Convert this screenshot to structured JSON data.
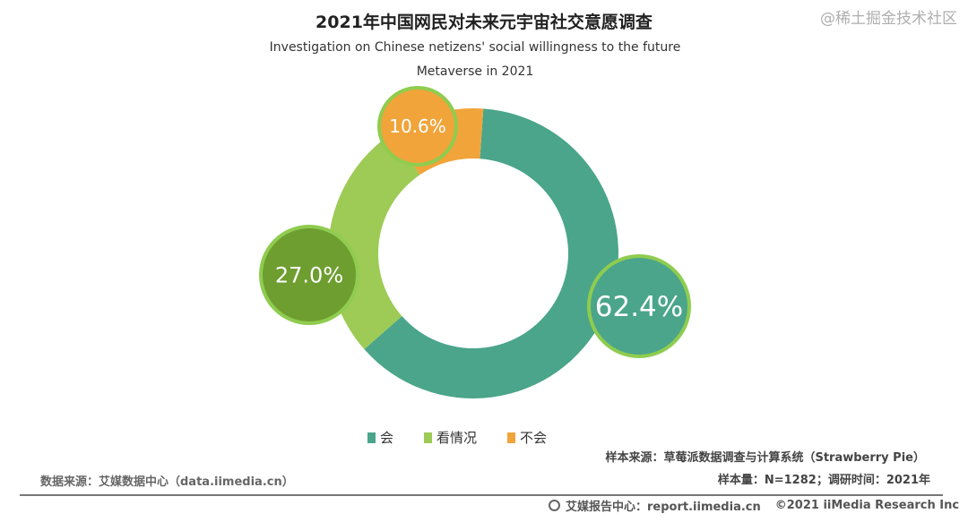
{
  "chart_data": {
    "type": "pie",
    "variant": "donut",
    "title": "2021年中国网民对未来元宇宙社交意愿调查",
    "subtitle_line1": "Investigation on Chinese netizens' social willingness to the future",
    "subtitle_line2": "Metaverse in 2021",
    "categories": [
      "会",
      "看情况",
      "不会"
    ],
    "values": [
      62.4,
      27.0,
      10.6
    ],
    "labels": [
      "62.4%",
      "27.0%",
      "10.6%"
    ],
    "colors": [
      "#4aa58a",
      "#9dcb55",
      "#f0a43a"
    ],
    "label_bubble_colors": [
      "#4aa58a",
      "#6e9e30",
      "#f0a43a"
    ],
    "label_bubble_border": "#8fcc4f",
    "legend_position": "bottom"
  },
  "notes": {
    "sample_source": "样本来源：草莓派数据调查与计算系统（Strawberry Pie）",
    "sample_size": "样本量：N=1282；调研时间：2021年",
    "data_source": "数据来源：艾媒数据中心（data.iimedia.cn）"
  },
  "footer": {
    "report": "艾媒报告中心：report.iimedia.cn",
    "copyright": "©2021  iiMedia Research  Inc",
    "watermark": "@稀土掘金技术社区"
  }
}
